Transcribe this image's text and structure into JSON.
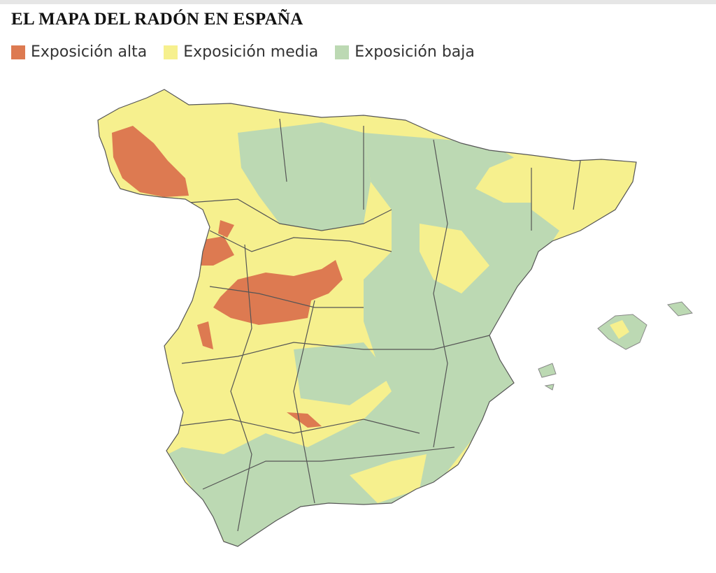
{
  "title": "EL MAPA DEL RADÓN EN ESPAÑA",
  "legend": [
    {
      "label": "Exposición alta",
      "color": "#dd7a51"
    },
    {
      "label": "Exposición media",
      "color": "#f6f08e"
    },
    {
      "label": "Exposición baja",
      "color": "#bcd9b3"
    }
  ]
}
